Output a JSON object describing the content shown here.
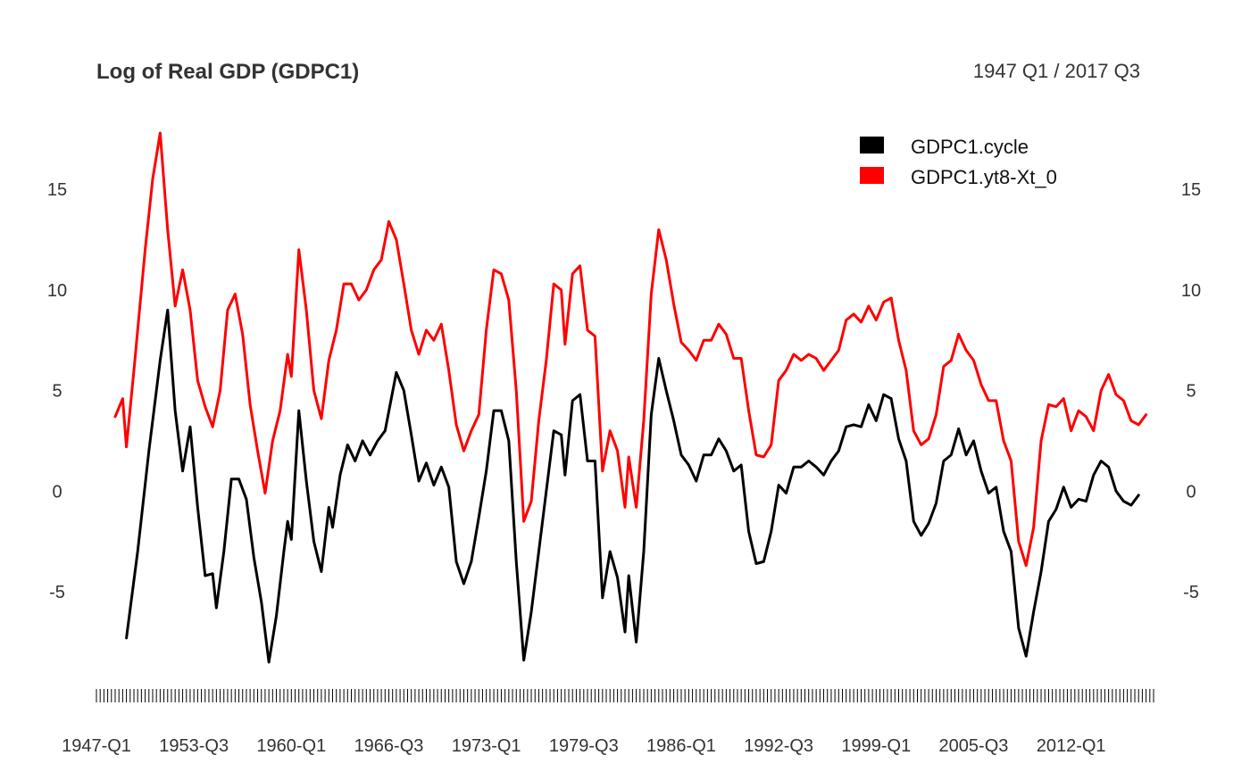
{
  "chart_data": {
    "type": "line",
    "title": "Log of Real GDP (GDPC1)",
    "date_range": "1947 Q1 / 2017 Q3",
    "x_start": "1947-Q1",
    "x_end": "2017-Q3",
    "x_tick_labels": [
      "1947-Q1",
      "1953-Q3",
      "1960-Q1",
      "1966-Q3",
      "1973-Q1",
      "1979-Q3",
      "1986-Q1",
      "1992-Q3",
      "1999-Q1",
      "2005-Q3",
      "2012-Q1"
    ],
    "y_ticks": [
      -5,
      0,
      5,
      10,
      15
    ],
    "ylim": [
      -9.3,
      18.2
    ],
    "y_tick_labels_left": [
      "-5",
      "0",
      "5",
      "10",
      "15"
    ],
    "y_tick_labels_right": [
      "-5",
      "0",
      "5",
      "10",
      "15"
    ],
    "legend_position": "top-right",
    "grid": false,
    "series": [
      {
        "name": "GDPC1.cycle",
        "color": "#000000",
        "points": [
          [
            "1949-Q1",
            -7.3
          ],
          [
            "1949-Q4",
            -3.0
          ],
          [
            "1950-Q3",
            2.0
          ],
          [
            "1951-Q2",
            6.5
          ],
          [
            "1951-Q4",
            9.0
          ],
          [
            "1952-Q2",
            4.0
          ],
          [
            "1952-Q4",
            1.0
          ],
          [
            "1953-Q2",
            3.2
          ],
          [
            "1953-Q4",
            -0.8
          ],
          [
            "1954-Q2",
            -4.2
          ],
          [
            "1954-Q4",
            -4.1
          ],
          [
            "1955-Q1",
            -5.8
          ],
          [
            "1955-Q3",
            -3.0
          ],
          [
            "1956-Q1",
            0.6
          ],
          [
            "1956-Q3",
            0.6
          ],
          [
            "1957-Q1",
            -0.4
          ],
          [
            "1957-Q3",
            -3.3
          ],
          [
            "1958-Q1",
            -5.5
          ],
          [
            "1958-Q3",
            -8.5
          ],
          [
            "1959-Q1",
            -6.2
          ],
          [
            "1959-Q3",
            -3.0
          ],
          [
            "1959-Q4",
            -1.5
          ],
          [
            "1960-Q1",
            -2.4
          ],
          [
            "1960-Q3",
            4.0
          ],
          [
            "1961-Q1",
            0.5
          ],
          [
            "1961-Q3",
            -2.5
          ],
          [
            "1962-Q1",
            -4.0
          ],
          [
            "1962-Q3",
            -0.8
          ],
          [
            "1962-Q4",
            -1.8
          ],
          [
            "1963-Q2",
            0.8
          ],
          [
            "1963-Q4",
            2.3
          ],
          [
            "1964-Q2",
            1.5
          ],
          [
            "1964-Q4",
            2.5
          ],
          [
            "1965-Q2",
            1.8
          ],
          [
            "1965-Q4",
            2.5
          ],
          [
            "1966-Q2",
            3.0
          ],
          [
            "1967-Q1",
            5.9
          ],
          [
            "1967-Q3",
            5.0
          ],
          [
            "1968-Q1",
            2.8
          ],
          [
            "1968-Q3",
            0.5
          ],
          [
            "1969-Q1",
            1.4
          ],
          [
            "1969-Q3",
            0.3
          ],
          [
            "1970-Q1",
            1.2
          ],
          [
            "1970-Q3",
            0.2
          ],
          [
            "1971-Q1",
            -3.5
          ],
          [
            "1971-Q3",
            -4.6
          ],
          [
            "1972-Q1",
            -3.5
          ],
          [
            "1972-Q3",
            -1.3
          ],
          [
            "1973-Q1",
            1.0
          ],
          [
            "1973-Q3",
            4.0
          ],
          [
            "1974-Q1",
            4.0
          ],
          [
            "1974-Q3",
            2.5
          ],
          [
            "1975-Q1",
            -3.5
          ],
          [
            "1975-Q3",
            -8.4
          ],
          [
            "1976-Q1",
            -6.0
          ],
          [
            "1976-Q3",
            -3.0
          ],
          [
            "1977-Q1",
            0.0
          ],
          [
            "1977-Q3",
            3.0
          ],
          [
            "1978-Q1",
            2.8
          ],
          [
            "1978-Q2",
            0.8
          ],
          [
            "1978-Q4",
            4.5
          ],
          [
            "1979-Q2",
            4.8
          ],
          [
            "1979-Q4",
            1.5
          ],
          [
            "1980-Q2",
            1.5
          ],
          [
            "1980-Q4",
            -5.3
          ],
          [
            "1981-Q2",
            -3.0
          ],
          [
            "1981-Q4",
            -4.3
          ],
          [
            "1982-Q2",
            -7.0
          ],
          [
            "1982-Q3",
            -4.2
          ],
          [
            "1983-Q1",
            -7.5
          ],
          [
            "1983-Q3",
            -3.0
          ],
          [
            "1984-Q1",
            3.8
          ],
          [
            "1984-Q3",
            6.6
          ],
          [
            "1985-Q1",
            5.0
          ],
          [
            "1985-Q3",
            3.5
          ],
          [
            "1986-Q1",
            1.8
          ],
          [
            "1986-Q3",
            1.3
          ],
          [
            "1987-Q1",
            0.5
          ],
          [
            "1987-Q3",
            1.8
          ],
          [
            "1988-Q1",
            1.8
          ],
          [
            "1988-Q3",
            2.6
          ],
          [
            "1989-Q1",
            2.0
          ],
          [
            "1989-Q3",
            1.0
          ],
          [
            "1990-Q1",
            1.3
          ],
          [
            "1990-Q3",
            -2.0
          ],
          [
            "1991-Q1",
            -3.6
          ],
          [
            "1991-Q3",
            -3.5
          ],
          [
            "1992-Q1",
            -2.0
          ],
          [
            "1992-Q3",
            0.3
          ],
          [
            "1993-Q1",
            -0.1
          ],
          [
            "1993-Q3",
            1.2
          ],
          [
            "1994-Q1",
            1.2
          ],
          [
            "1994-Q3",
            1.5
          ],
          [
            "1995-Q1",
            1.2
          ],
          [
            "1995-Q3",
            0.8
          ],
          [
            "1996-Q1",
            1.5
          ],
          [
            "1996-Q3",
            2.0
          ],
          [
            "1997-Q1",
            3.2
          ],
          [
            "1997-Q3",
            3.3
          ],
          [
            "1998-Q1",
            3.2
          ],
          [
            "1998-Q3",
            4.3
          ],
          [
            "1999-Q1",
            3.5
          ],
          [
            "1999-Q3",
            4.8
          ],
          [
            "2000-Q1",
            4.6
          ],
          [
            "2000-Q3",
            2.6
          ],
          [
            "2001-Q1",
            1.5
          ],
          [
            "2001-Q3",
            -1.5
          ],
          [
            "2002-Q1",
            -2.2
          ],
          [
            "2002-Q3",
            -1.6
          ],
          [
            "2003-Q1",
            -0.6
          ],
          [
            "2003-Q3",
            1.5
          ],
          [
            "2004-Q1",
            1.8
          ],
          [
            "2004-Q3",
            3.1
          ],
          [
            "2005-Q1",
            1.8
          ],
          [
            "2005-Q3",
            2.5
          ],
          [
            "2006-Q1",
            1.0
          ],
          [
            "2006-Q3",
            -0.1
          ],
          [
            "2007-Q1",
            0.2
          ],
          [
            "2007-Q3",
            -2.0
          ],
          [
            "2008-Q1",
            -3.0
          ],
          [
            "2008-Q3",
            -6.8
          ],
          [
            "2009-Q1",
            -8.2
          ],
          [
            "2009-Q3",
            -6.0
          ],
          [
            "2010-Q1",
            -4.0
          ],
          [
            "2010-Q3",
            -1.5
          ],
          [
            "2011-Q1",
            -0.9
          ],
          [
            "2011-Q3",
            0.2
          ],
          [
            "2012-Q1",
            -0.8
          ],
          [
            "2012-Q3",
            -0.4
          ],
          [
            "2013-Q1",
            -0.5
          ],
          [
            "2013-Q3",
            0.8
          ],
          [
            "2014-Q1",
            1.5
          ],
          [
            "2014-Q3",
            1.2
          ],
          [
            "2015-Q1",
            0.0
          ],
          [
            "2015-Q3",
            -0.5
          ],
          [
            "2016-Q1",
            -0.7
          ],
          [
            "2016-Q3",
            -0.2
          ]
        ]
      },
      {
        "name": "GDPC1.yt8-Xt_0",
        "color": "#ff0000",
        "points": [
          [
            "1948-Q2",
            3.7
          ],
          [
            "1948-Q4",
            4.6
          ],
          [
            "1949-Q1",
            2.2
          ],
          [
            "1949-Q3",
            6.0
          ],
          [
            "1950-Q2",
            12.0
          ],
          [
            "1950-Q4",
            15.5
          ],
          [
            "1951-Q2",
            17.8
          ],
          [
            "1951-Q4",
            13.0
          ],
          [
            "1952-Q2",
            9.2
          ],
          [
            "1952-Q4",
            11.0
          ],
          [
            "1953-Q2",
            9.0
          ],
          [
            "1953-Q4",
            5.5
          ],
          [
            "1954-Q2",
            4.2
          ],
          [
            "1954-Q4",
            3.2
          ],
          [
            "1955-Q2",
            5.0
          ],
          [
            "1955-Q4",
            9.0
          ],
          [
            "1956-Q2",
            9.8
          ],
          [
            "1956-Q4",
            7.8
          ],
          [
            "1957-Q2",
            4.3
          ],
          [
            "1957-Q4",
            2.0
          ],
          [
            "1958-Q2",
            -0.1
          ],
          [
            "1958-Q4",
            2.5
          ],
          [
            "1959-Q2",
            4.0
          ],
          [
            "1959-Q4",
            6.8
          ],
          [
            "1960-Q1",
            5.7
          ],
          [
            "1960-Q3",
            12.0
          ],
          [
            "1961-Q1",
            9.0
          ],
          [
            "1961-Q3",
            5.0
          ],
          [
            "1962-Q1",
            3.6
          ],
          [
            "1962-Q3",
            6.5
          ],
          [
            "1963-Q1",
            8.0
          ],
          [
            "1963-Q3",
            10.3
          ],
          [
            "1964-Q1",
            10.3
          ],
          [
            "1964-Q3",
            9.5
          ],
          [
            "1965-Q1",
            10.0
          ],
          [
            "1965-Q3",
            11.0
          ],
          [
            "1966-Q1",
            11.5
          ],
          [
            "1966-Q3",
            13.4
          ],
          [
            "1967-Q1",
            12.5
          ],
          [
            "1967-Q3",
            10.3
          ],
          [
            "1968-Q1",
            8.0
          ],
          [
            "1968-Q3",
            6.8
          ],
          [
            "1969-Q1",
            8.0
          ],
          [
            "1969-Q3",
            7.5
          ],
          [
            "1970-Q1",
            8.3
          ],
          [
            "1970-Q3",
            6.0
          ],
          [
            "1971-Q1",
            3.3
          ],
          [
            "1971-Q3",
            2.0
          ],
          [
            "1972-Q1",
            3.0
          ],
          [
            "1972-Q3",
            3.8
          ],
          [
            "1973-Q1",
            8.0
          ],
          [
            "1973-Q3",
            11.0
          ],
          [
            "1974-Q1",
            10.8
          ],
          [
            "1974-Q3",
            9.5
          ],
          [
            "1975-Q1",
            5.0
          ],
          [
            "1975-Q3",
            -1.5
          ],
          [
            "1976-Q1",
            -0.5
          ],
          [
            "1976-Q3",
            3.5
          ],
          [
            "1977-Q1",
            6.5
          ],
          [
            "1977-Q3",
            10.3
          ],
          [
            "1978-Q1",
            10.0
          ],
          [
            "1978-Q2",
            7.3
          ],
          [
            "1978-Q4",
            10.8
          ],
          [
            "1979-Q2",
            11.2
          ],
          [
            "1979-Q4",
            8.0
          ],
          [
            "1980-Q2",
            7.7
          ],
          [
            "1980-Q4",
            1.0
          ],
          [
            "1981-Q2",
            3.0
          ],
          [
            "1981-Q4",
            2.0
          ],
          [
            "1982-Q2",
            -0.8
          ],
          [
            "1982-Q3",
            1.7
          ],
          [
            "1983-Q1",
            -0.8
          ],
          [
            "1983-Q3",
            3.5
          ],
          [
            "1984-Q1",
            9.8
          ],
          [
            "1984-Q3",
            13.0
          ],
          [
            "1985-Q1",
            11.5
          ],
          [
            "1985-Q3",
            9.3
          ],
          [
            "1986-Q1",
            7.4
          ],
          [
            "1986-Q3",
            7.0
          ],
          [
            "1987-Q1",
            6.5
          ],
          [
            "1987-Q3",
            7.5
          ],
          [
            "1988-Q1",
            7.5
          ],
          [
            "1988-Q3",
            8.3
          ],
          [
            "1989-Q1",
            7.8
          ],
          [
            "1989-Q3",
            6.6
          ],
          [
            "1990-Q1",
            6.6
          ],
          [
            "1990-Q3",
            4.0
          ],
          [
            "1991-Q1",
            1.8
          ],
          [
            "1991-Q3",
            1.7
          ],
          [
            "1992-Q1",
            2.3
          ],
          [
            "1992-Q3",
            5.5
          ],
          [
            "1993-Q1",
            6.0
          ],
          [
            "1993-Q3",
            6.8
          ],
          [
            "1994-Q1",
            6.5
          ],
          [
            "1994-Q3",
            6.8
          ],
          [
            "1995-Q1",
            6.6
          ],
          [
            "1995-Q3",
            6.0
          ],
          [
            "1996-Q1",
            6.5
          ],
          [
            "1996-Q3",
            7.0
          ],
          [
            "1997-Q1",
            8.5
          ],
          [
            "1997-Q3",
            8.8
          ],
          [
            "1998-Q1",
            8.4
          ],
          [
            "1998-Q3",
            9.2
          ],
          [
            "1999-Q1",
            8.5
          ],
          [
            "1999-Q3",
            9.4
          ],
          [
            "2000-Q1",
            9.6
          ],
          [
            "2000-Q3",
            7.5
          ],
          [
            "2001-Q1",
            6.0
          ],
          [
            "2001-Q3",
            3.0
          ],
          [
            "2002-Q1",
            2.3
          ],
          [
            "2002-Q3",
            2.6
          ],
          [
            "2003-Q1",
            3.8
          ],
          [
            "2003-Q3",
            6.2
          ],
          [
            "2004-Q1",
            6.5
          ],
          [
            "2004-Q3",
            7.8
          ],
          [
            "2005-Q1",
            7.0
          ],
          [
            "2005-Q3",
            6.5
          ],
          [
            "2006-Q1",
            5.3
          ],
          [
            "2006-Q3",
            4.5
          ],
          [
            "2007-Q1",
            4.5
          ],
          [
            "2007-Q3",
            2.5
          ],
          [
            "2008-Q1",
            1.5
          ],
          [
            "2008-Q3",
            -2.5
          ],
          [
            "2009-Q1",
            -3.7
          ],
          [
            "2009-Q3",
            -1.8
          ],
          [
            "2010-Q1",
            2.5
          ],
          [
            "2010-Q3",
            4.3
          ],
          [
            "2011-Q1",
            4.2
          ],
          [
            "2011-Q3",
            4.6
          ],
          [
            "2012-Q1",
            3.0
          ],
          [
            "2012-Q3",
            4.0
          ],
          [
            "2013-Q1",
            3.7
          ],
          [
            "2013-Q3",
            3.0
          ],
          [
            "2014-Q1",
            5.0
          ],
          [
            "2014-Q3",
            5.8
          ],
          [
            "2015-Q1",
            4.8
          ],
          [
            "2015-Q3",
            4.5
          ],
          [
            "2016-Q1",
            3.5
          ],
          [
            "2016-Q3",
            3.3
          ],
          [
            "2017-Q1",
            3.8
          ]
        ]
      }
    ]
  }
}
